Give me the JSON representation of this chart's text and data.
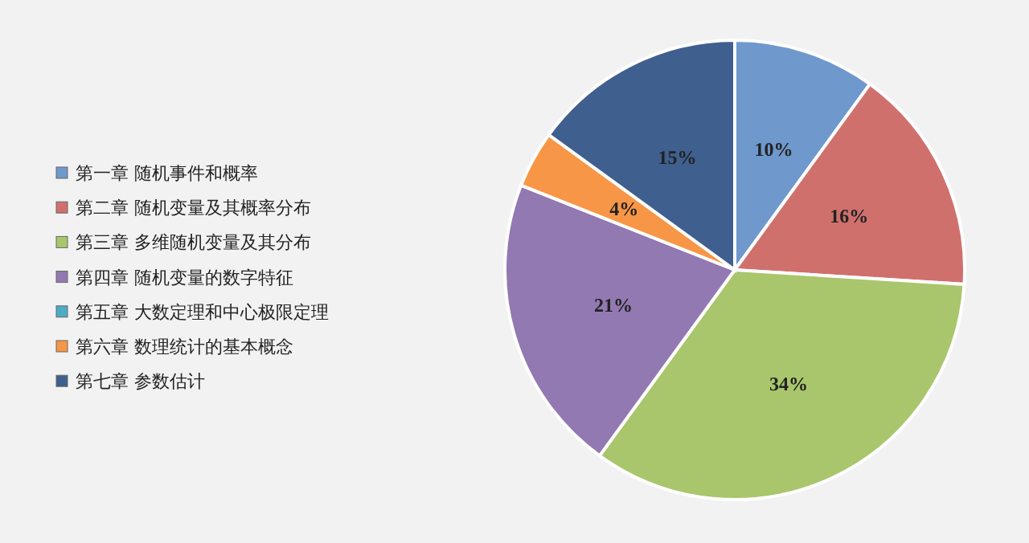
{
  "chart_data": {
    "type": "pie",
    "categories": [
      "第一章 随机事件和概率",
      "第二章 随机变量及其概率分布",
      "第三章 多维随机变量及其分布",
      "第四章 随机变量的数字特征",
      "第五章 大数定理和中心极限定理",
      "第六章 数理统计的基本概念",
      "第七章 参数估计"
    ],
    "values": [
      10,
      16,
      34,
      21,
      0,
      4,
      15
    ],
    "colors": [
      "#6f98cc",
      "#d0706d",
      "#a9c66c",
      "#9279b2",
      "#4bacc6",
      "#f79646",
      "#3f5f8f"
    ],
    "value_labels": [
      "10%",
      "16%",
      "34%",
      "21%",
      null,
      "4%",
      "15%"
    ],
    "legend": "left"
  }
}
